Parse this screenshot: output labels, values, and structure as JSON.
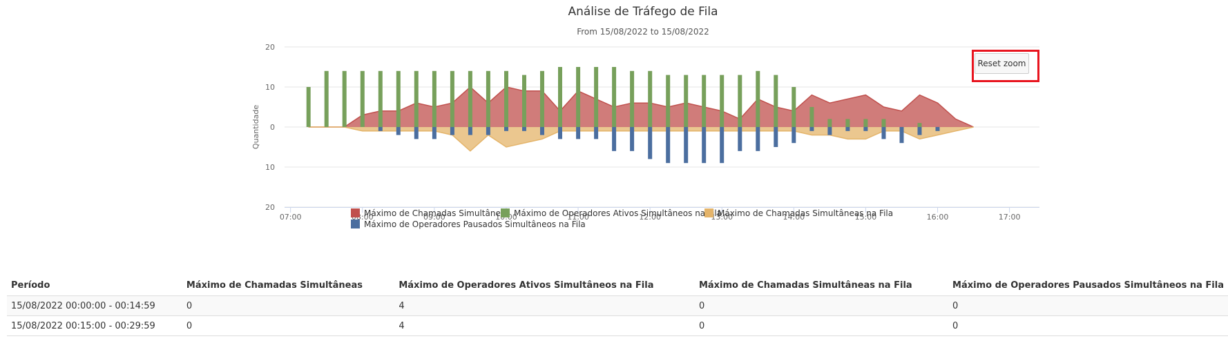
{
  "chart_data": {
    "type": "area",
    "title": "Análise de Tráfego de Fila",
    "subtitle": "From 15/08/2022 to 15/08/2022",
    "ylabel": "Quantidade",
    "ylim": [
      -20,
      20
    ],
    "y_ticks": [
      "20",
      "10",
      "0",
      "10",
      "20"
    ],
    "x_ticks": [
      "07:00",
      "08:00",
      "09:00",
      "10:00",
      "11:00",
      "12:00",
      "13:00",
      "14:00",
      "15:00",
      "16:00",
      "17:00"
    ],
    "x_range": [
      "06:55",
      "17:25"
    ],
    "legend_position": "bottom-center",
    "x": [
      "07:15",
      "07:30",
      "07:45",
      "08:00",
      "08:15",
      "08:30",
      "08:45",
      "09:00",
      "09:15",
      "09:30",
      "09:45",
      "10:00",
      "10:15",
      "10:30",
      "10:45",
      "11:00",
      "11:15",
      "11:30",
      "11:45",
      "12:00",
      "12:15",
      "12:30",
      "12:45",
      "13:00",
      "13:15",
      "13:30",
      "13:45",
      "14:00",
      "14:15",
      "14:30",
      "14:45",
      "15:00",
      "15:15",
      "15:30",
      "15:45",
      "16:00",
      "16:15",
      "16:30"
    ],
    "series": [
      {
        "name": "Máximo de Chamadas Simultâneas",
        "type": "area",
        "color": "#c0504d",
        "values": [
          0,
          0,
          0,
          3,
          4,
          4,
          6,
          5,
          6,
          10,
          6,
          10,
          9,
          9,
          4,
          9,
          7,
          5,
          6,
          6,
          5,
          6,
          5,
          4,
          2,
          7,
          5,
          4,
          8,
          6,
          7,
          8,
          5,
          4,
          8,
          6,
          2,
          0
        ]
      },
      {
        "name": "Máximo de Operadores Ativos Simultâneos na Fila",
        "type": "column",
        "color": "#77a05b",
        "values": [
          10,
          14,
          14,
          14,
          14,
          14,
          14,
          14,
          14,
          14,
          14,
          14,
          13,
          14,
          15,
          15,
          15,
          15,
          14,
          14,
          13,
          13,
          13,
          13,
          13,
          14,
          13,
          10,
          5,
          2,
          2,
          2,
          2,
          0,
          1,
          0,
          0,
          0
        ]
      },
      {
        "name": "Máximo de Chamadas Simultâneas na Fila",
        "type": "area",
        "color": "#e4b46a",
        "values": [
          0,
          0,
          0,
          -1,
          -1,
          -1,
          -1,
          -1,
          -2,
          -6,
          -2,
          -5,
          -4,
          -3,
          -1,
          -1,
          -1,
          -1,
          -1,
          -1,
          -1,
          -1,
          -1,
          -1,
          -1,
          -1,
          -1,
          -1,
          -2,
          -2,
          -3,
          -3,
          -1,
          -1,
          -3,
          -2,
          -1,
          0
        ]
      },
      {
        "name": "Máximo de Operadores Pausados Simultâneos na Fila",
        "type": "column",
        "color": "#4b6e9f",
        "values": [
          0,
          0,
          0,
          0,
          -1,
          -2,
          -3,
          -3,
          -2,
          -2,
          -2,
          -1,
          -1,
          -2,
          -3,
          -3,
          -3,
          -6,
          -6,
          -8,
          -9,
          -9,
          -9,
          -9,
          -6,
          -6,
          -5,
          -4,
          -1,
          -2,
          -1,
          -1,
          -3,
          -4,
          -2,
          -1,
          0,
          0
        ]
      }
    ]
  },
  "toolbar": {
    "reset_zoom_label": "Reset zoom"
  },
  "table": {
    "headers": [
      "Período",
      "Máximo de Chamadas Simultâneas",
      "Máximo de Operadores Ativos Simultâneos na Fila",
      "Máximo de Chamadas Simultâneas na Fila",
      "Máximo de Operadores Pausados Simultâneos na Fila"
    ],
    "rows": [
      [
        "15/08/2022 00:00:00 - 00:14:59",
        "0",
        "4",
        "0",
        "0"
      ],
      [
        "15/08/2022 00:15:00 - 00:29:59",
        "0",
        "4",
        "0",
        "0"
      ]
    ]
  }
}
